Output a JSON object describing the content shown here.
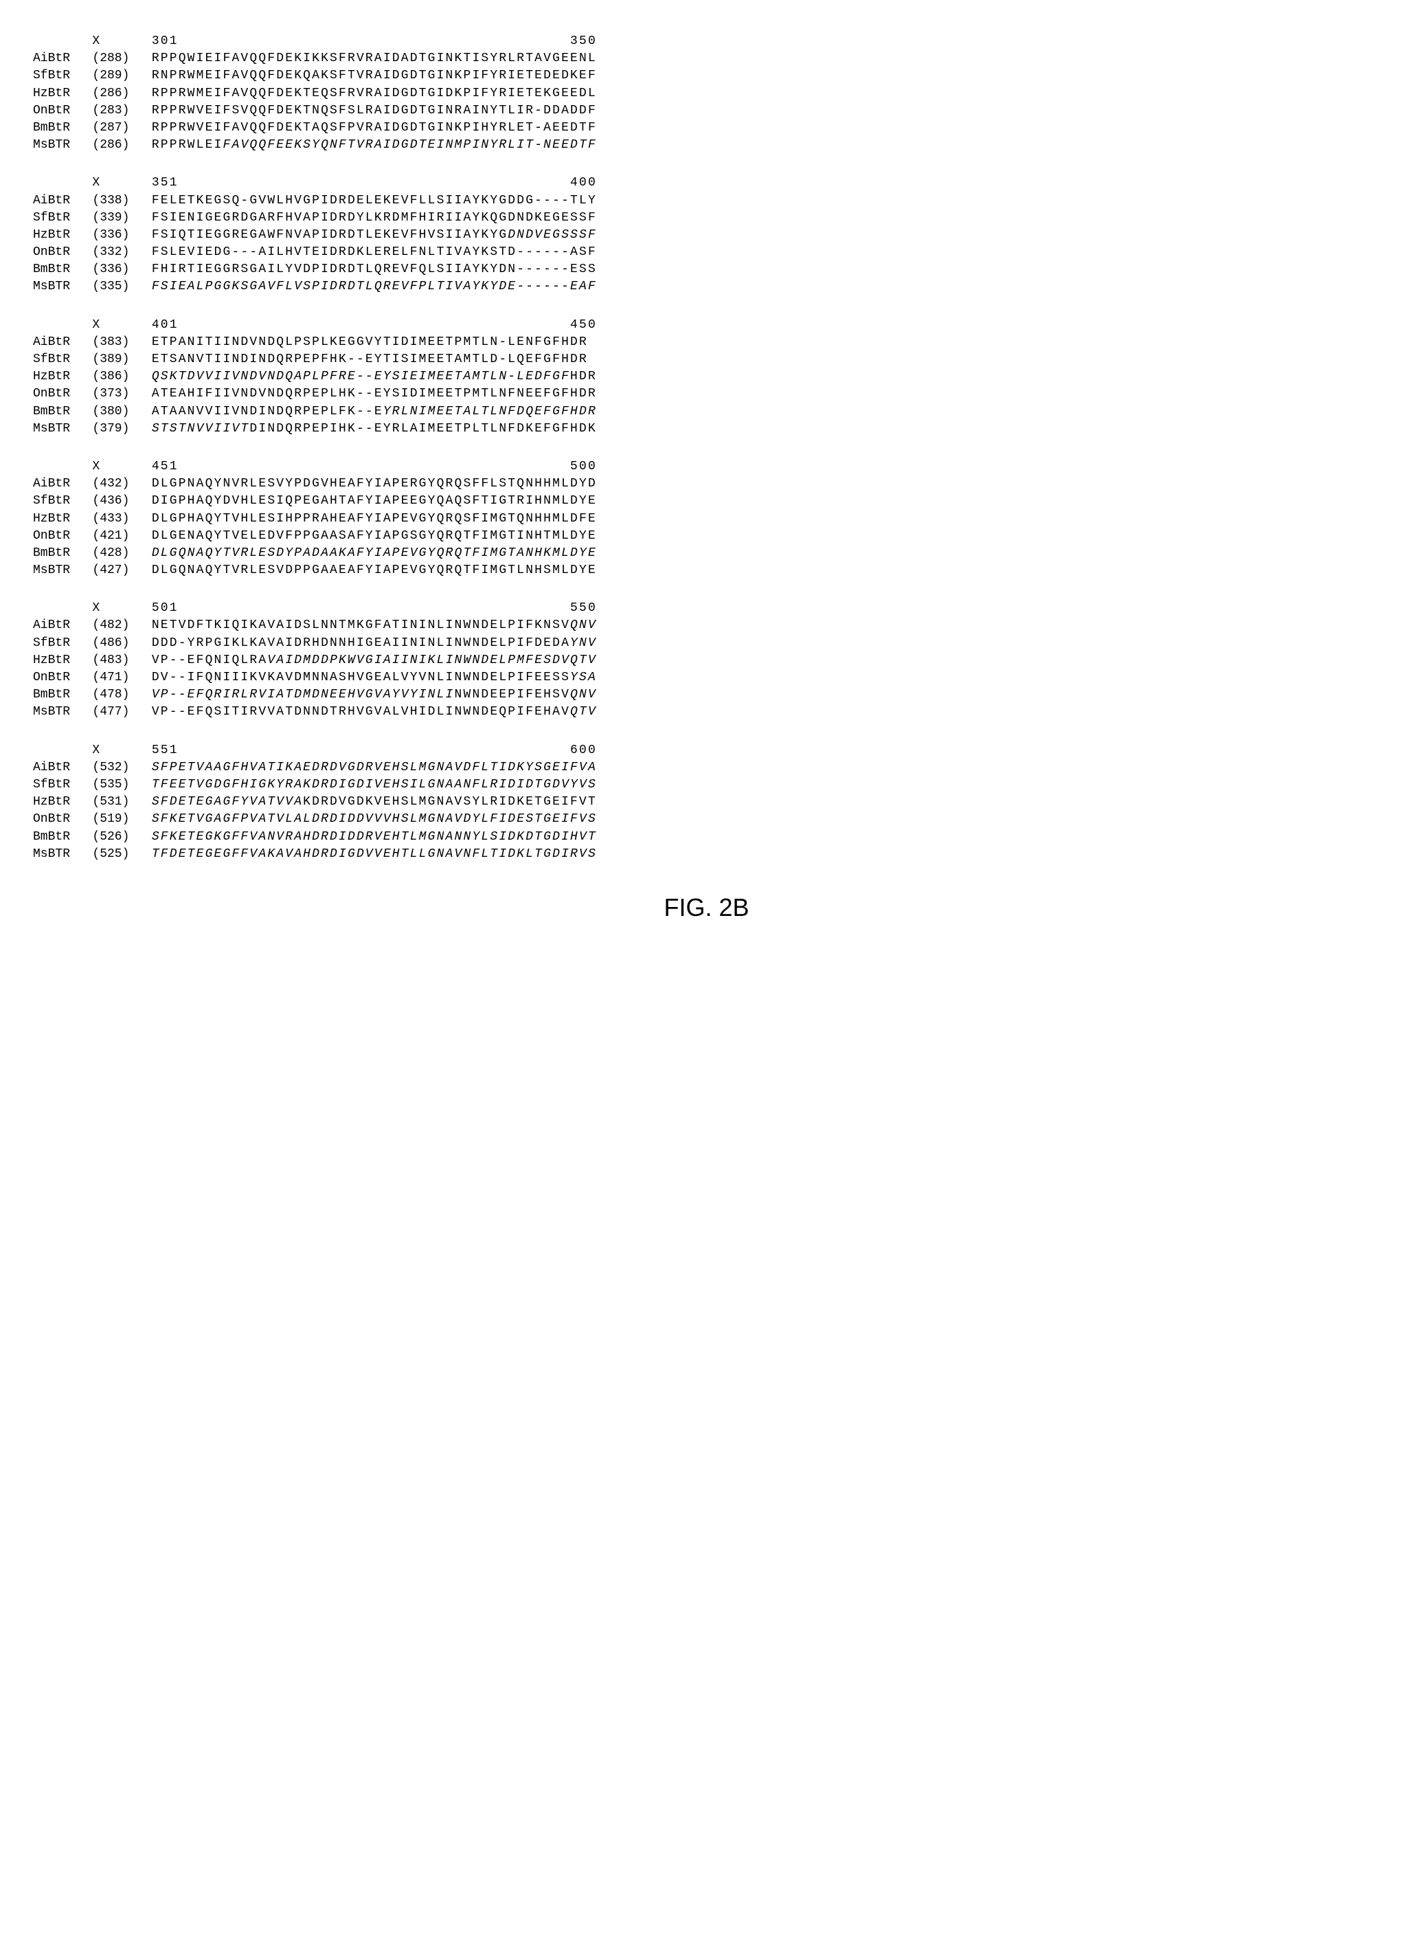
{
  "figure_label": "FIG. 2B",
  "font_family": "Courier New",
  "label_col_width_ch": 8,
  "pos_col_width_ch": 8,
  "seq_letter_spacing_ch": 0.2,
  "colors": {
    "background": "#ffffff",
    "text": "#000000"
  },
  "blocks": [
    {
      "ruler_start": "301",
      "ruler_end": "350",
      "rows": [
        {
          "label": "AiBtR",
          "pos": "(288)",
          "seq": "RPPQWIEIFAVQQFDEKIKKSFRVRAIDADTGINKTISYRLRTAVGEENL"
        },
        {
          "label": "SfBtR",
          "pos": "(289)",
          "seq": "RNPRWMEIFAVQQFDEKQAKSFTVRAIDGDTGINKPIFYRIETEDEDKEF"
        },
        {
          "label": "HzBtR",
          "pos": "(286)",
          "seq": "RPPRWMEIFAVQQFDEKTEQSFRVRAIDGDTGIDKPIFYRIETEKGEEDL"
        },
        {
          "label": "OnBtR",
          "pos": "(283)",
          "seq": "RPPRWVEIFSVQQFDEKTNQSFSLRAIDGDTGINRAINYTLIR-DDADDF"
        },
        {
          "label": "BmBtR",
          "pos": "(287)",
          "seq": "RPPRWVEIFAVQQFDEKTAQSFPVRAIDGDTGINKPIHYRLET-AEEDTF"
        },
        {
          "label": "MsBTR",
          "pos": "(286)",
          "seq": "RPPRWLEI<i>FAVQQFEEKSYQNFTVRAIDGDTEINMPINYRLIT-NEEDTF</i>"
        }
      ]
    },
    {
      "ruler_start": "351",
      "ruler_end": "400",
      "rows": [
        {
          "label": "AiBtR",
          "pos": "(338)",
          "seq": "FELETKEGSQ-GVWLHVGPIDRDELEKEVFLLSIIAYKYGDDG----TLY"
        },
        {
          "label": "SfBtR",
          "pos": "(339)",
          "seq": "FSIENIGEGRDGARFHVAPIDRDYLKRDMFHIRIIAYKQGDNDKEGESSF"
        },
        {
          "label": "HzBtR",
          "pos": "(336)",
          "seq": "FSIQTIEGGREGAWFNVAPIDRDTLEKEVFHVSIIAYKYG<i>DNDVEGSSSF</i>"
        },
        {
          "label": "OnBtR",
          "pos": "(332)",
          "seq": "FSLEVIEDG---AILHVTEIDRDKLERELFNLTIVAYKSTD------ASF"
        },
        {
          "label": "BmBtR",
          "pos": "(336)",
          "seq": "FHIRTIEGGRSGAILYVDPIDRDTLQREVFQLSIIAYKYDN------ESS"
        },
        {
          "label": "MsBTR",
          "pos": "(335)",
          "seq": "<i>FSIEALPGGKSGAVFLVSPIDRDTLQREVFPLTIVAYKYDE------EAF</i>"
        }
      ]
    },
    {
      "ruler_start": "401",
      "ruler_end": "450",
      "rows": [
        {
          "label": "AiBtR",
          "pos": "(383)",
          "seq": "ETPANITIINDVNDQLPSPLKEGGVYTIDIMEETPMTLN-LENFGFHDR"
        },
        {
          "label": "SfBtR",
          "pos": "(389)",
          "seq": "ETSANVTIINDINDQRPEPFHK--EYTISIMEETAMTLD-LQEFGFHDR"
        },
        {
          "label": "HzBtR",
          "pos": "(386)",
          "seq": "<i>QSKTDVVIIVNDVNDQAPLPFRE--EYSIEIMEETAMTLN-LEDFGF</i>HDR"
        },
        {
          "label": "OnBtR",
          "pos": "(373)",
          "seq": "ATEAHIFIIVNDVNDQRPEPLHK--EYSIDIMEETPMTLNFNEEFGFHDR"
        },
        {
          "label": "BmBtR",
          "pos": "(380)",
          "seq": "ATAANVVIIVNDINDQRPEPLFK--E<i>YRLNIMEETALTLNFDQEFGFHDR</i>"
        },
        {
          "label": "MsBTR",
          "pos": "(379)",
          "seq": "<i>STSTNVVIIVT</i>DINDQRPEPIHK--EYRLAIMEETPLTLNFDKEFGFHDK"
        }
      ]
    },
    {
      "ruler_start": "451",
      "ruler_end": "500",
      "rows": [
        {
          "label": "AiBtR",
          "pos": "(432)",
          "seq": "DLGPNAQYNVRLESVYPDGVHEAFYIAPERGYQRQSFFLSTQNHHMLDYD"
        },
        {
          "label": "SfBtR",
          "pos": "(436)",
          "seq": "DIGPHAQYDVHLESIQPEGAHTAFYIAPEEGYQAQSFTIGTRIHNMLDYE"
        },
        {
          "label": "HzBtR",
          "pos": "(433)",
          "seq": "DLGPHAQYTVHLESIHPPRAHEAFYIAPEVGYQRQSFIMGTQNHHMLDFE"
        },
        {
          "label": "OnBtR",
          "pos": "(421)",
          "seq": "DLGENAQYTVELEDVFPPGAASAFYIAPGSGYQRQTFIMGTINHTMLDYE"
        },
        {
          "label": "BmBtR",
          "pos": "(428)",
          "seq": "<i>DLGQNAQYTVRLESDYPADAAKAFYIAPEVGYQRQTFIMGTANHKMLDYE</i>"
        },
        {
          "label": "MsBTR",
          "pos": "(427)",
          "seq": "DLGQNAQYTVRLESVDPPGAAEAFYIAPEVGYQRQTFIMGTLNHSMLDYE"
        }
      ]
    },
    {
      "ruler_start": "501",
      "ruler_end": "550",
      "rows": [
        {
          "label": "AiBtR",
          "pos": "(482)",
          "seq": "NETVDFTKIQIKAVAIDSLNNTMKGFATININLINWNDELPIFKNSV<i>QNV</i>"
        },
        {
          "label": "SfBtR",
          "pos": "(486)",
          "seq": "DDD-YRPGIKLKAVAIDRHDNNHIGEAIININLINWNDELPIFDEDA<i>YNV</i>"
        },
        {
          "label": "HzBtR",
          "pos": "(483)",
          "seq": "VP--EFQNIQLRA<i>VAIDMDDPKWVGIAIINIKLINWNDELPMFESDVQTV</i>"
        },
        {
          "label": "OnBtR",
          "pos": "(471)",
          "seq": "DV--IFQNIIIKVKAVDMNNASHVGEALVYVNLINWNDELPIFEESS<i>YSA</i>"
        },
        {
          "label": "BmBtR",
          "pos": "(478)",
          "seq": "<i>VP--EFQRIRLRVIATDMDNEEHVGVAYVYINLI</i>NWNDEEPIFEHSV<i>QNV</i>"
        },
        {
          "label": "MsBTR",
          "pos": "(477)",
          "seq": "VP--EFQSITIRVVATDNNDTRHVGVALVHIDLINWNDEQPIFEHAV<i>QTV</i>"
        }
      ]
    },
    {
      "ruler_start": "551",
      "ruler_end": "600",
      "rows": [
        {
          "label": "AiBtR",
          "pos": "(532)",
          "seq": "<i>SFPETVAAGFHVATIKAEDRDVGDRVEHSLMGNAVDFLTIDKYSGEIFVA</i>"
        },
        {
          "label": "SfBtR",
          "pos": "(535)",
          "seq": "<i>TFEETVGDGFHIGKYRAKDRDIGDIVEHSILGNAANFLRIDIDTGDVYVS</i>"
        },
        {
          "label": "HzBtR",
          "pos": "(531)",
          "seq": "<i>SFDETEGAGFYVATVVA</i>KDRDVGDKVEHSLMGNAVSYLRIDKETGEIFVT"
        },
        {
          "label": "OnBtR",
          "pos": "(519)",
          "seq": "<i>SFKETVGAGFPVATVLALDRDIDDVVVHSLMGNAVDYLFIDESTGEIFVS</i>"
        },
        {
          "label": "BmBtR",
          "pos": "(526)",
          "seq": "<i>SFKETEGKGFFVANVRAHDRDIDDRVEHTLMGNANNYLSIDKDTGDIHVT</i>"
        },
        {
          "label": "MsBTR",
          "pos": "(525)",
          "seq": "<i>TFDETEGEGFFVAKAVAHDRDIGDVVEHTLLGNAVNFLTIDKLTGDIRVS</i>"
        }
      ]
    }
  ]
}
